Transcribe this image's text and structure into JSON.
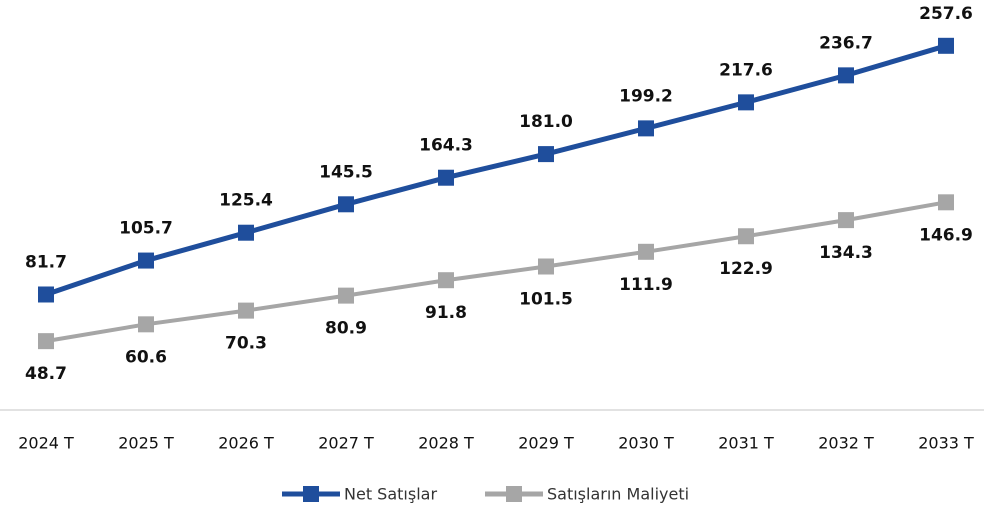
{
  "chart_data": {
    "type": "line",
    "categories": [
      "2024 T",
      "2025 T",
      "2026 T",
      "2027 T",
      "2028 T",
      "2029 T",
      "2030 T",
      "2031 T",
      "2032 T",
      "2033 T"
    ],
    "series": [
      {
        "name": "Net Satışlar",
        "color": "#1f4e9c",
        "values": [
          81.7,
          105.7,
          125.4,
          145.5,
          164.3,
          181.0,
          199.2,
          217.6,
          236.7,
          257.6
        ],
        "value_labels": [
          "81.7",
          "105.7",
          "125.4",
          "145.5",
          "164.3",
          "181.0",
          "199.2",
          "217.6",
          "236.7",
          "257.6"
        ]
      },
      {
        "name": "Satışların Maliyeti",
        "color": "#a6a6a6",
        "values": [
          48.7,
          60.6,
          70.3,
          80.9,
          91.8,
          101.5,
          111.9,
          122.9,
          134.3,
          146.9
        ],
        "value_labels": [
          "48.7",
          "60.6",
          "70.3",
          "80.9",
          "91.8",
          "101.5",
          "111.9",
          "122.9",
          "134.3",
          "146.9"
        ]
      }
    ],
    "ylim": [
      0,
      290
    ],
    "legend": "bottom"
  }
}
